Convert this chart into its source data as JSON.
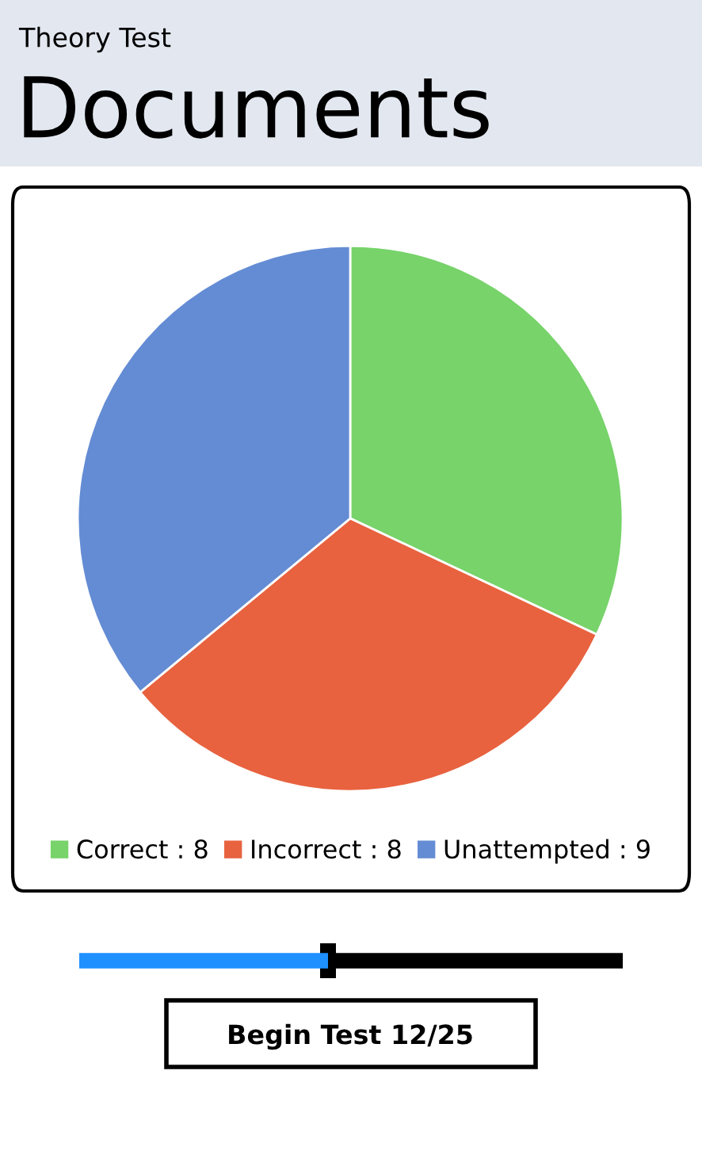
{
  "chart_data": {
    "type": "pie",
    "title": "Documents",
    "subtitle": "Theory Test",
    "categories": [
      "Correct : 8",
      "Incorrect : 8",
      "Unattempted : 9"
    ],
    "values": [
      8,
      8,
      9
    ],
    "colors": [
      "#77d36a",
      "#e8623f",
      "#648cd4"
    ],
    "legend": "bottom",
    "annotations": [
      "Begin Test 12/25"
    ]
  }
}
